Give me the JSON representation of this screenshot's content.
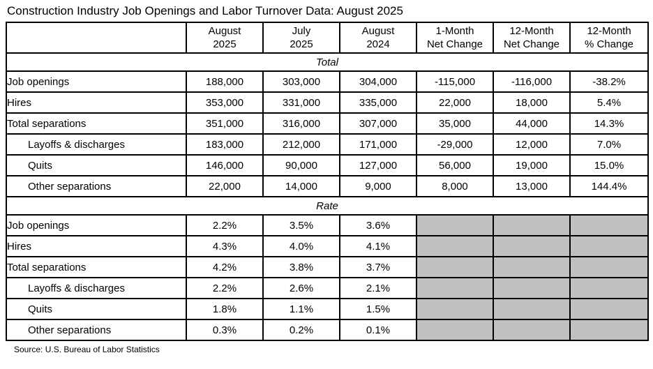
{
  "source": "Source: U.S. Bureau of Labor Statistics",
  "colors": {
    "shaded_cell": "#c0c0c0",
    "border": "#000000",
    "background": "#ffffff",
    "text": "#000000"
  },
  "chart_data": {
    "type": "table",
    "title": "Construction Industry Job Openings and Labor Turnover Data: August 2025",
    "column_headers": [
      "August\n2025",
      "July\n2025",
      "August\n2024",
      "1-Month\nNet Change",
      "12-Month\nNet Change",
      "12-Month\n% Change"
    ],
    "sections": [
      {
        "label": "Total",
        "rows": [
          {
            "label": "Job openings",
            "indent": false,
            "values": [
              "188,000",
              "303,000",
              "304,000",
              "-115,000",
              "-116,000",
              "-38.2%"
            ]
          },
          {
            "label": "Hires",
            "indent": false,
            "values": [
              "353,000",
              "331,000",
              "335,000",
              "22,000",
              "18,000",
              "5.4%"
            ]
          },
          {
            "label": "Total separations",
            "indent": false,
            "values": [
              "351,000",
              "316,000",
              "307,000",
              "35,000",
              "44,000",
              "14.3%"
            ]
          },
          {
            "label": "Layoffs & discharges",
            "indent": true,
            "values": [
              "183,000",
              "212,000",
              "171,000",
              "-29,000",
              "12,000",
              "7.0%"
            ]
          },
          {
            "label": "Quits",
            "indent": true,
            "values": [
              "146,000",
              "90,000",
              "127,000",
              "56,000",
              "19,000",
              "15.0%"
            ]
          },
          {
            "label": "Other separations",
            "indent": true,
            "values": [
              "22,000",
              "14,000",
              "9,000",
              "8,000",
              "13,000",
              "144.4%"
            ]
          }
        ]
      },
      {
        "label": "Rate",
        "rows": [
          {
            "label": "Job openings",
            "indent": false,
            "values": [
              "2.2%",
              "3.5%",
              "3.6%",
              null,
              null,
              null
            ]
          },
          {
            "label": "Hires",
            "indent": false,
            "values": [
              "4.3%",
              "4.0%",
              "4.1%",
              null,
              null,
              null
            ]
          },
          {
            "label": "Total separations",
            "indent": false,
            "values": [
              "4.2%",
              "3.8%",
              "3.7%",
              null,
              null,
              null
            ]
          },
          {
            "label": "Layoffs & discharges",
            "indent": true,
            "values": [
              "2.2%",
              "2.6%",
              "2.1%",
              null,
              null,
              null
            ]
          },
          {
            "label": "Quits",
            "indent": true,
            "values": [
              "1.8%",
              "1.1%",
              "1.5%",
              null,
              null,
              null
            ]
          },
          {
            "label": "Other separations",
            "indent": true,
            "values": [
              "0.3%",
              "0.2%",
              "0.1%",
              null,
              null,
              null
            ]
          }
        ]
      }
    ]
  }
}
